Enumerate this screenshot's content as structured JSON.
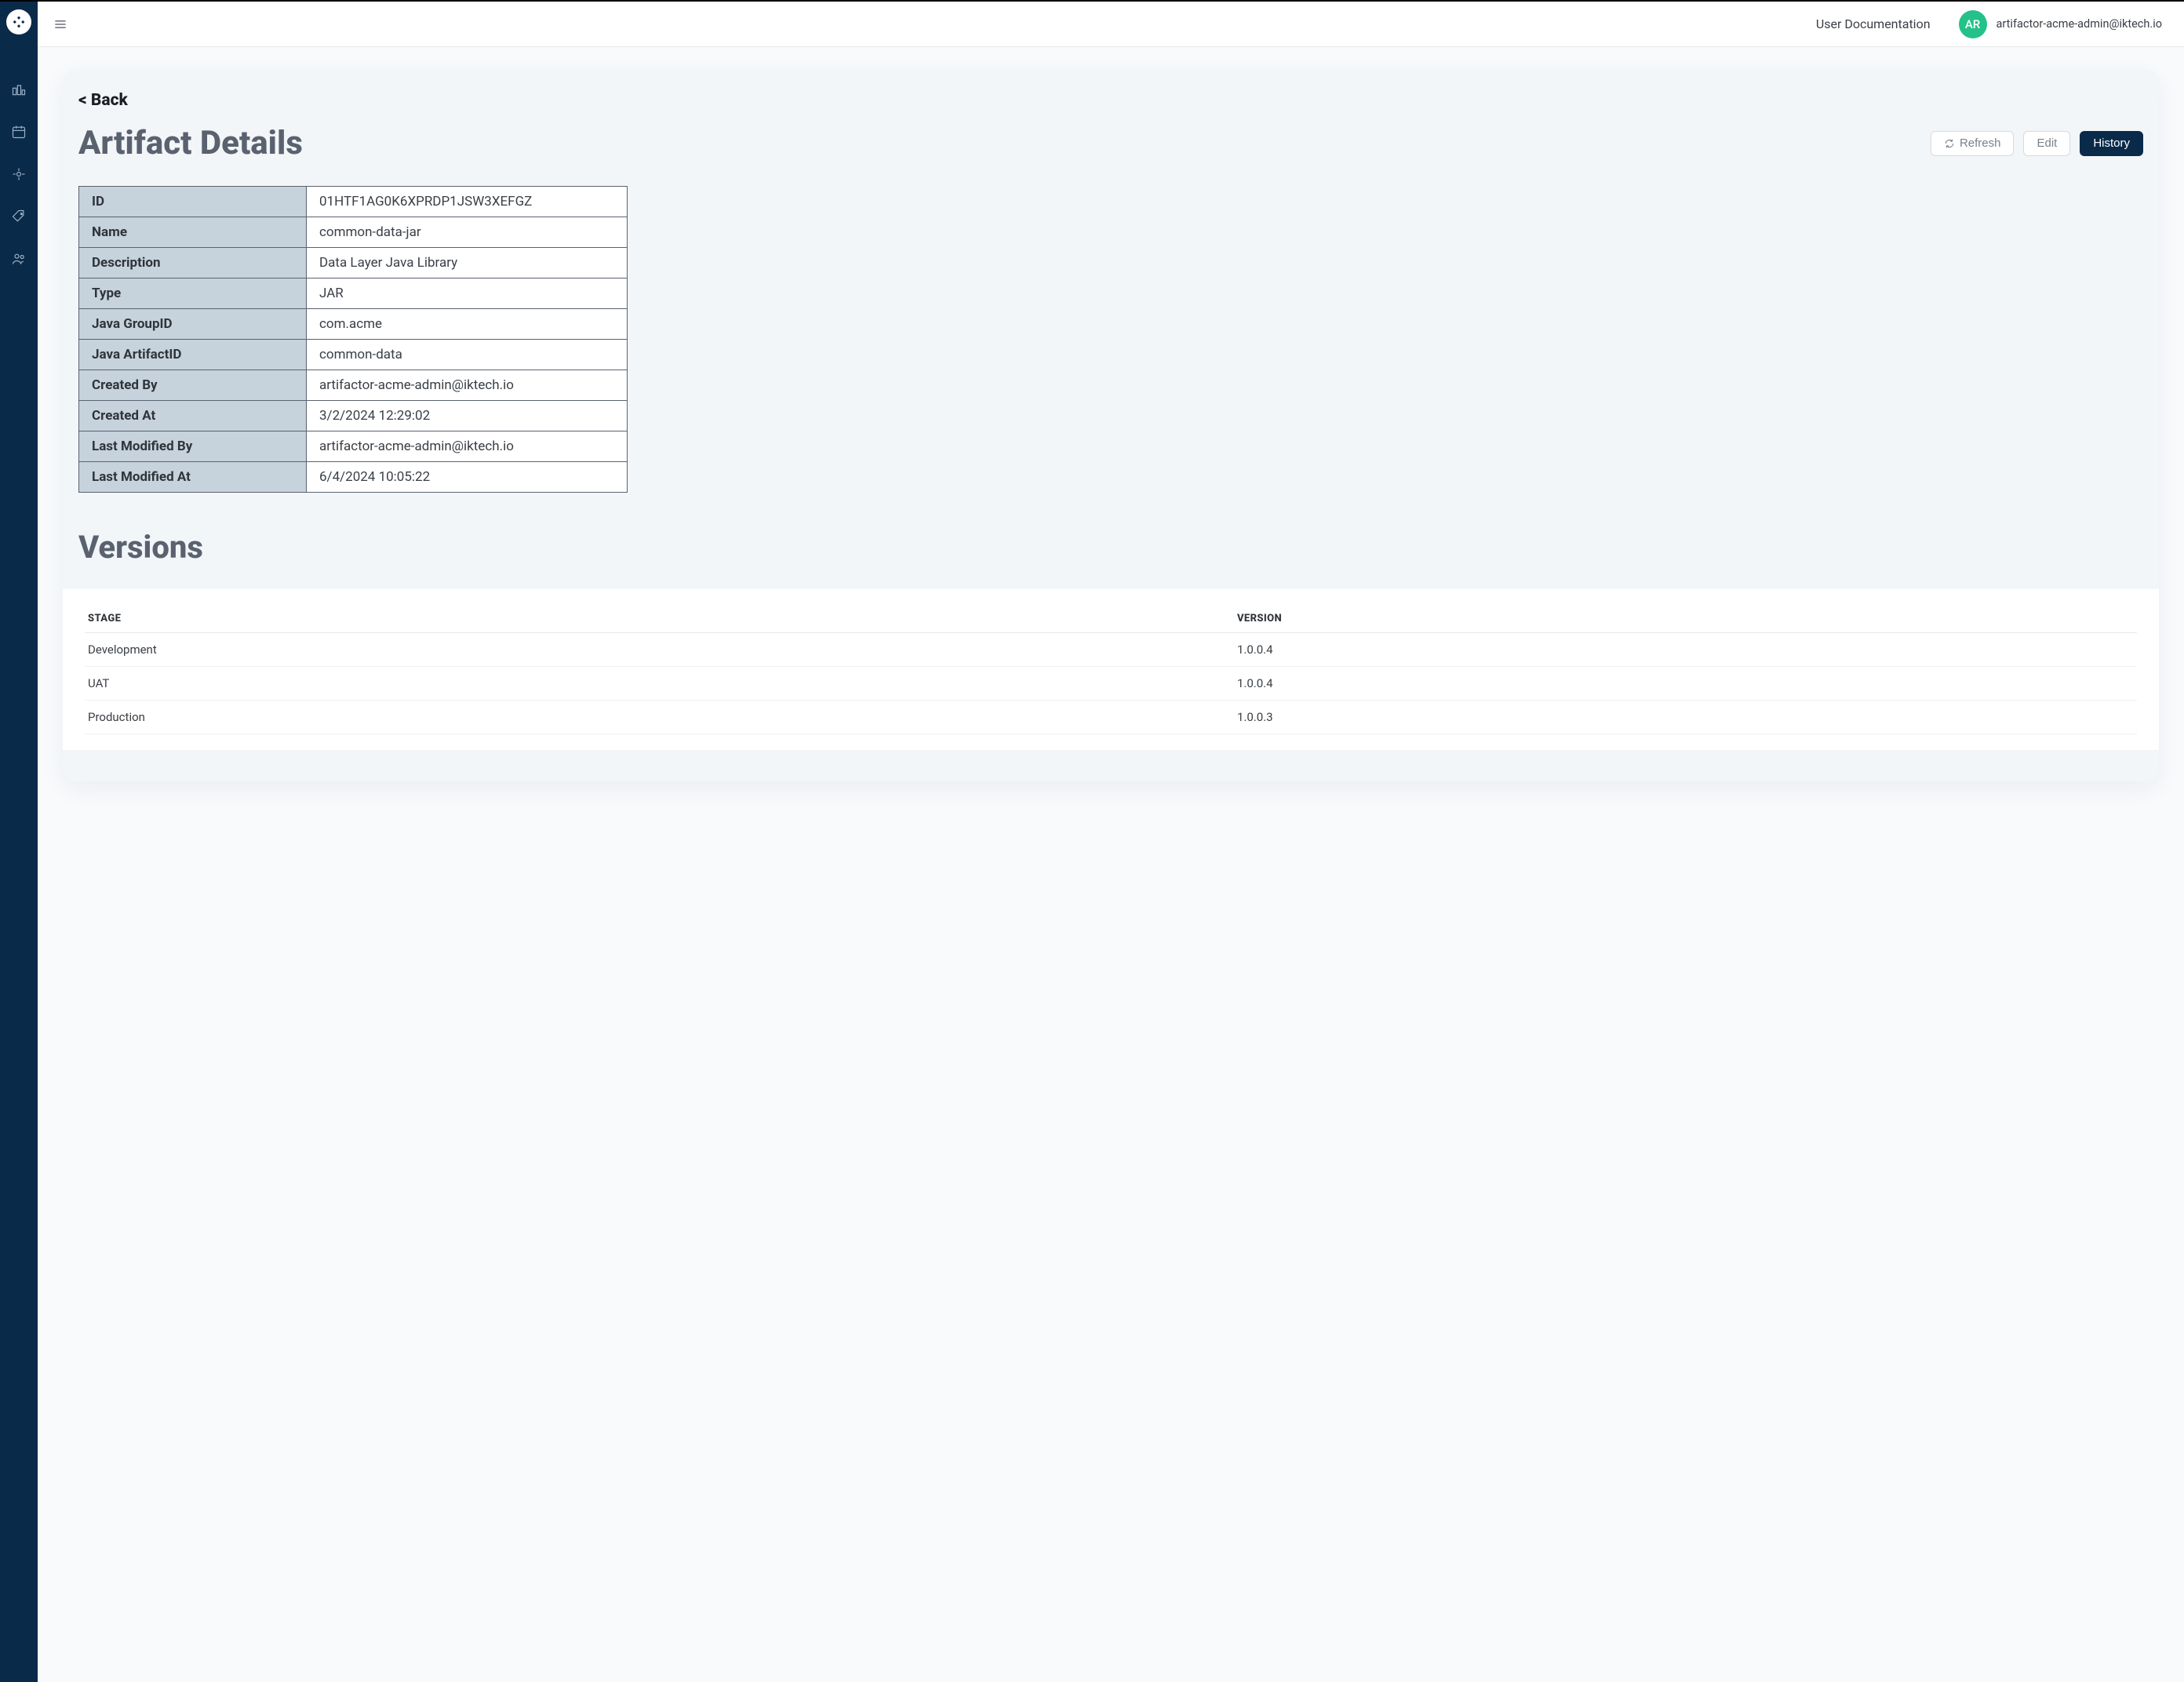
{
  "colors": {
    "sidebar_bg": "#0a2a4a",
    "accent_green": "#24c28a",
    "page_bg": "#f8fafc",
    "card_bg": "#f3f6f8",
    "table_border": "#5a6270",
    "label_bg": "#c6d2dc",
    "muted_text": "#5a6270",
    "topbar_border": "#e5e8eb"
  },
  "topbar": {
    "doc_link": "User Documentation",
    "avatar_initials": "AR",
    "user_email": "artifactor-acme-admin@iktech.io"
  },
  "page": {
    "back_label": "< Back",
    "title": "Artifact Details",
    "buttons": {
      "refresh": "Refresh",
      "edit": "Edit",
      "history": "History"
    }
  },
  "details": {
    "rows": [
      {
        "label": "ID",
        "value": "01HTF1AG0K6XPRDP1JSW3XEFGZ"
      },
      {
        "label": "Name",
        "value": "common-data-jar"
      },
      {
        "label": "Description",
        "value": "Data Layer Java Library"
      },
      {
        "label": "Type",
        "value": "JAR"
      },
      {
        "label": "Java GroupID",
        "value": "com.acme"
      },
      {
        "label": "Java ArtifactID",
        "value": "common-data"
      },
      {
        "label": "Created By",
        "value": "artifactor-acme-admin@iktech.io"
      },
      {
        "label": "Created At",
        "value": "3/2/2024 12:29:02"
      },
      {
        "label": "Last Modified By",
        "value": "artifactor-acme-admin@iktech.io"
      },
      {
        "label": "Last Modified At",
        "value": "6/4/2024 10:05:22"
      }
    ]
  },
  "versions": {
    "title": "Versions",
    "columns": {
      "stage": "STAGE",
      "version": "VERSION"
    },
    "rows": [
      {
        "stage": "Development",
        "version": "1.0.0.4"
      },
      {
        "stage": "UAT",
        "version": "1.0.0.4"
      },
      {
        "stage": "Production",
        "version": "1.0.0.3"
      }
    ]
  }
}
